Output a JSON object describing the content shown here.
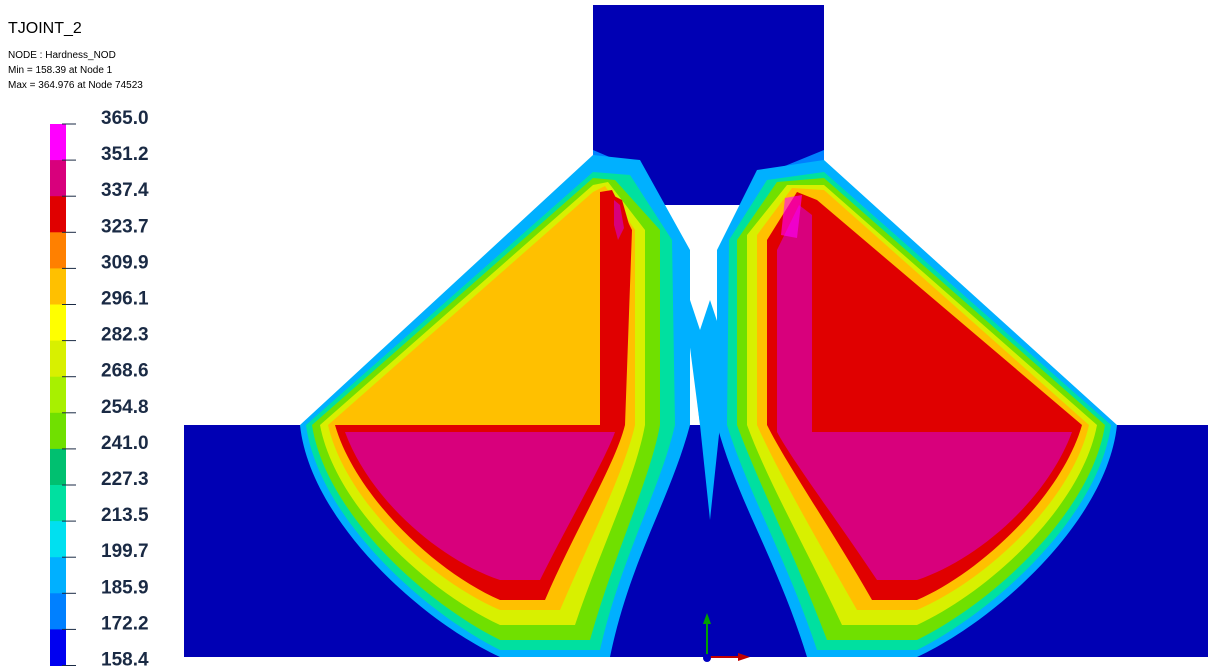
{
  "header": {
    "title": "TJOINT_2",
    "lines": [
      "NODE : Hardness_NOD",
      "Min = 158.39 at Node 1",
      "Max = 364.976 at Node 74523"
    ]
  },
  "legend": {
    "labels": [
      "365.0",
      "351.2",
      "337.4",
      "323.7",
      "309.9",
      "296.1",
      "282.3",
      "268.6",
      "254.8",
      "241.0",
      "227.3",
      "213.5",
      "199.7",
      "185.9",
      "172.2",
      "158.4"
    ],
    "colors": [
      "#ff00ff",
      "#d8007c",
      "#e00000",
      "#ff8000",
      "#ffc000",
      "#ffff00",
      "#d8f000",
      "#a8f000",
      "#70e000",
      "#00c070",
      "#00e0a0",
      "#00e0f0",
      "#00b0ff",
      "#0080ff",
      "#0000f0"
    ]
  }
}
